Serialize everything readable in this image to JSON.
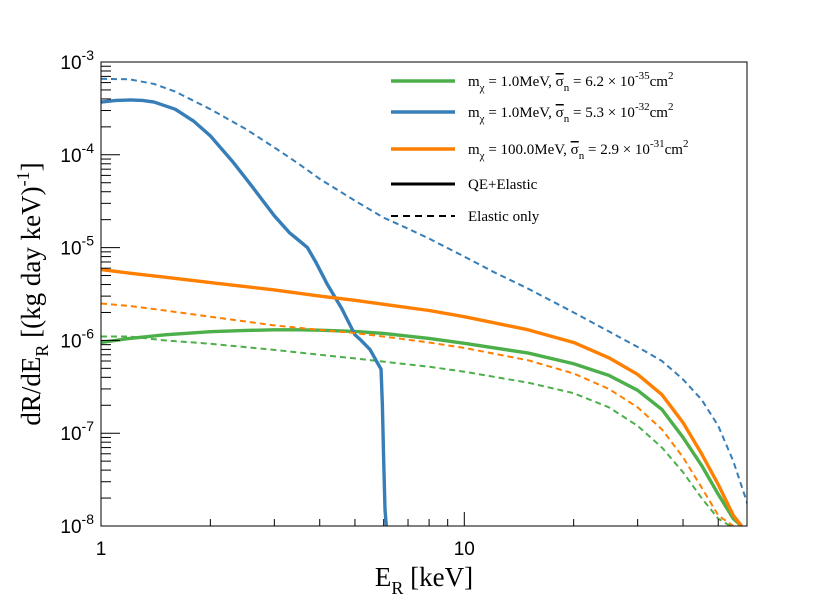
{
  "chart_data": {
    "type": "line",
    "title": "",
    "xlabel": "E",
    "xlabel_sub": "R",
    "xlabel_unit": " [keV]",
    "ylabel": "dR/dE",
    "ylabel_sub": "R",
    "ylabel_unit": " [(kg day keV)",
    "ylabel_unit_sup": "-1",
    "ylabel_close": "]",
    "x_scale": "log",
    "y_scale": "log",
    "xlim": [
      1,
      60
    ],
    "ylim": [
      1e-08,
      0.001
    ],
    "x_tick_labels": [
      {
        "value": 1,
        "label": "1"
      },
      {
        "value": 10,
        "label": "10"
      }
    ],
    "y_tick_labels": [
      {
        "value": 1e-08,
        "base": "10",
        "exp": "-8"
      },
      {
        "value": 1e-07,
        "base": "10",
        "exp": "-7"
      },
      {
        "value": 1e-06,
        "base": "10",
        "exp": "-6"
      },
      {
        "value": 1e-05,
        "base": "10",
        "exp": "-5"
      },
      {
        "value": 0.0001,
        "base": "10",
        "exp": "-4"
      },
      {
        "value": 0.001,
        "base": "10",
        "exp": "-3"
      }
    ],
    "legend_position": "top-right",
    "legend": [
      {
        "kind": "color",
        "color": "#4daf4a",
        "mass_label": "m",
        "mass_sub": "χ",
        "mass_value": " = 1.0MeV, ",
        "sigma_symbol": "σ",
        "sigma_sub": "n",
        "sigma_value": " = 6.2 × 10",
        "sigma_exp": "-35",
        "sigma_unit": "cm",
        "sigma_unit_exp": "2"
      },
      {
        "kind": "color",
        "color": "#377eb8",
        "mass_label": "m",
        "mass_sub": "χ",
        "mass_value": " = 1.0MeV, ",
        "sigma_symbol": "σ",
        "sigma_sub": "n",
        "sigma_value": " = 5.3 × 10",
        "sigma_exp": "-32",
        "sigma_unit": "cm",
        "sigma_unit_exp": "2"
      },
      {
        "kind": "color",
        "color": "#ff7f00",
        "mass_label": "m",
        "mass_sub": "χ",
        "mass_value": " = 100.0MeV, ",
        "sigma_symbol": "σ",
        "sigma_sub": "n",
        "sigma_value": " = 2.9 × 10",
        "sigma_exp": "-31",
        "sigma_unit": "cm",
        "sigma_unit_exp": "2"
      },
      {
        "kind": "style",
        "style": "solid",
        "color": "#000000",
        "label": "QE+Elastic"
      },
      {
        "kind": "style",
        "style": "dashed",
        "color": "#000000",
        "label": "Elastic only"
      }
    ],
    "series": [
      {
        "name": "m_chi = 1.0MeV, sigma_n = 6.2e-35 cm2, QE+Elastic",
        "color": "#4daf4a",
        "style": "solid",
        "x": [
          1,
          1.2,
          1.5,
          2,
          2.5,
          3,
          3.5,
          4,
          5,
          6,
          8,
          10,
          15,
          20,
          25,
          30,
          35,
          40,
          45,
          50,
          55,
          58
        ],
        "y": [
          9.5e-07,
          1.05e-06,
          1.15e-06,
          1.24e-06,
          1.28e-06,
          1.3e-06,
          1.3e-06,
          1.29e-06,
          1.25e-06,
          1.19e-06,
          1.05e-06,
          9.3e-07,
          7.3e-07,
          5.6e-07,
          4.2e-07,
          2.9e-07,
          1.8e-07,
          9e-08,
          4.5e-08,
          2.2e-08,
          1.2e-08,
          1e-08
        ]
      },
      {
        "name": "m_chi = 1.0MeV, sigma_n = 6.2e-35 cm2, Elastic only",
        "color": "#4daf4a",
        "style": "dashed",
        "x": [
          1,
          1.2,
          1.5,
          2,
          3,
          4,
          5,
          6,
          8,
          10,
          15,
          20,
          25,
          30,
          35,
          40,
          45,
          50,
          54
        ],
        "y": [
          1.1e-06,
          1.1e-06,
          1e-06,
          9.2e-07,
          7.9e-07,
          7e-07,
          6.4e-07,
          5.9e-07,
          5.2e-07,
          4.6e-07,
          3.5e-07,
          2.7e-07,
          1.9e-07,
          1.2e-07,
          7e-08,
          3.8e-08,
          2e-08,
          1.2e-08,
          1e-08
        ]
      },
      {
        "name": "m_chi = 1.0MeV, sigma_n = 5.3e-32 cm2, QE+Elastic",
        "color": "#377eb8",
        "style": "solid",
        "x": [
          1,
          1.1,
          1.2,
          1.3,
          1.4,
          1.6,
          1.8,
          2,
          2.3,
          2.6,
          3,
          3.3,
          3.5,
          3.7,
          3.9,
          4.2,
          4.6,
          5,
          5.2,
          5.5,
          5.8,
          5.9,
          5.95,
          6.0,
          6.05,
          6.1
        ],
        "y": [
          0.00037,
          0.000385,
          0.00039,
          0.000385,
          0.00037,
          0.00031,
          0.00023,
          0.00016,
          8.5e-05,
          4.6e-05,
          2.2e-05,
          1.45e-05,
          1.2e-05,
          1e-05,
          7e-06,
          4e-06,
          2.2e-06,
          1.15e-06,
          1e-06,
          8e-07,
          5.5e-07,
          4.9e-07,
          2e-07,
          5e-08,
          1.5e-08,
          1e-08
        ]
      },
      {
        "name": "m_chi = 1.0MeV, sigma_n = 5.3e-32 cm2, Elastic only",
        "color": "#377eb8",
        "style": "dashed",
        "x": [
          1,
          1.2,
          1.4,
          1.6,
          2,
          2.5,
          3,
          3.5,
          4,
          5,
          6,
          7,
          8,
          10,
          12,
          15,
          20,
          25,
          30,
          35,
          40,
          45,
          50,
          55,
          60,
          62
        ],
        "y": [
          0.00066,
          0.00065,
          0.00058,
          0.00048,
          0.00031,
          0.00019,
          0.00012,
          8e-05,
          5.5e-05,
          3.2e-05,
          2.1e-05,
          1.6e-05,
          1.25e-05,
          8e-06,
          5.5e-06,
          3.6e-06,
          2e-06,
          1.25e-06,
          8.5e-07,
          6e-07,
          3.8e-07,
          2.3e-07,
          1.2e-07,
          5e-08,
          1.8e-08,
          1e-08
        ]
      },
      {
        "name": "m_chi = 100.0MeV, sigma_n = 2.9e-31 cm2, QE+Elastic",
        "color": "#ff7f00",
        "style": "solid",
        "x": [
          1,
          1.2,
          1.5,
          2,
          3,
          4,
          5,
          6,
          8,
          10,
          15,
          20,
          25,
          30,
          35,
          40,
          45,
          50,
          55,
          58
        ],
        "y": [
          5.8e-06,
          5.3e-06,
          4.8e-06,
          4.2e-06,
          3.5e-06,
          3e-06,
          2.7e-06,
          2.45e-06,
          2.1e-06,
          1.8e-06,
          1.3e-06,
          9.5e-07,
          6.5e-07,
          4.3e-07,
          2.6e-07,
          1.3e-07,
          6e-08,
          2.8e-08,
          1.3e-08,
          1e-08
        ]
      },
      {
        "name": "m_chi = 100.0MeV, sigma_n = 2.9e-31 cm2, Elastic only",
        "color": "#ff7f00",
        "style": "dashed",
        "x": [
          1,
          1.2,
          1.5,
          2,
          3,
          4,
          5,
          6,
          8,
          10,
          15,
          20,
          25,
          30,
          35,
          40,
          45,
          50,
          55
        ],
        "y": [
          2.5e-06,
          2.35e-06,
          2.1e-06,
          1.8e-06,
          1.45e-06,
          1.3e-06,
          1.2e-06,
          1.1e-06,
          9.5e-07,
          8.3e-07,
          6.1e-07,
          4.4e-07,
          3e-07,
          1.9e-07,
          1.1e-07,
          5.5e-08,
          2.6e-08,
          1.3e-08,
          1e-08
        ]
      }
    ]
  }
}
